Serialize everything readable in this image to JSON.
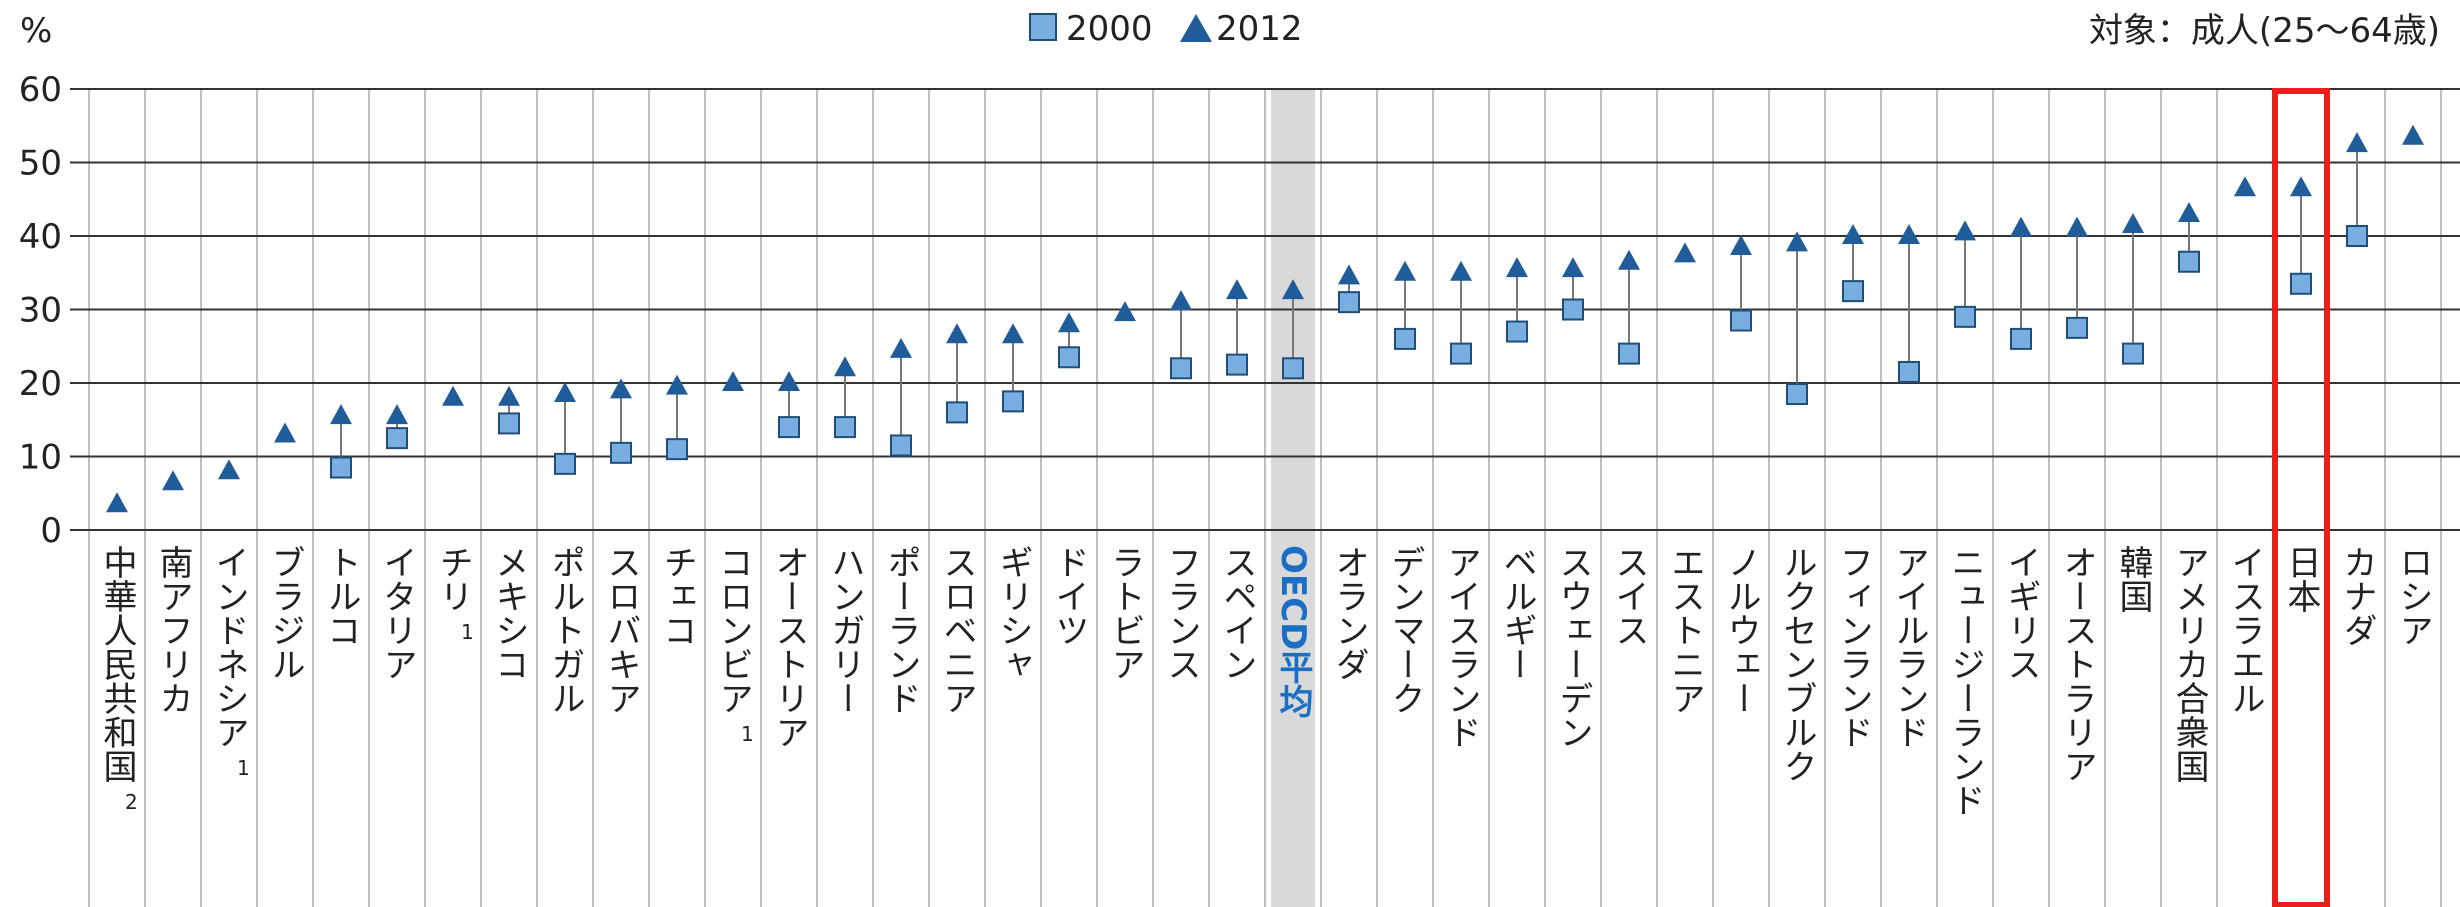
{
  "chart_data": {
    "type": "dot",
    "ylabel": "%",
    "annotation": "対象：成人(25～64歳)",
    "categories": [
      "中華人民共和国",
      "南アフリカ",
      "インドネシア",
      "ブラジル",
      "トルコ",
      "イタリア",
      "チリ",
      "メキシコ",
      "ポルトガル",
      "スロバキア",
      "チェコ",
      "コロンビア",
      "オーストリア",
      "ハンガリー",
      "ポーランド",
      "スロベニア",
      "ギリシャ",
      "ドイツ",
      "ラトビア",
      "フランス",
      "スペイン",
      "OECD平均",
      "オランダ",
      "デンマーク",
      "アイスランド",
      "ベルギー",
      "スウェーデン",
      "スイス",
      "エストニア",
      "ノルウェー",
      "ルクセンブルク",
      "フィンランド",
      "アイルランド",
      "ニュージーランド",
      "イギリス",
      "オーストラリア",
      "韓国",
      "アメリカ合衆国",
      "イスラエル",
      "日本",
      "カナダ",
      "ロシア"
    ],
    "category_notes": [
      "2",
      null,
      "1",
      null,
      null,
      null,
      "1",
      null,
      null,
      null,
      null,
      "1",
      null,
      null,
      null,
      null,
      null,
      null,
      null,
      null,
      null,
      null,
      null,
      null,
      null,
      null,
      null,
      null,
      null,
      null,
      null,
      null,
      null,
      null,
      null,
      null,
      null,
      null,
      null,
      null,
      null,
      null
    ],
    "series": [
      {
        "name": "2000",
        "color": "#79afe0",
        "marker": "square",
        "values": [
          null,
          null,
          null,
          null,
          8.5,
          12.5,
          null,
          14.5,
          9,
          10.5,
          11,
          null,
          14,
          14,
          11.5,
          16,
          17.5,
          23.5,
          null,
          22,
          22.5,
          22,
          31,
          26,
          24,
          27,
          30,
          24,
          null,
          28.5,
          18.5,
          32.5,
          21.5,
          29,
          26,
          27.5,
          24,
          36.5,
          null,
          33.5,
          40,
          null
        ]
      },
      {
        "name": "2012",
        "color": "#1f5c99",
        "marker": "triangle",
        "values": [
          3.5,
          6.5,
          8,
          13,
          15.5,
          15.5,
          18,
          18,
          18.5,
          19,
          19.5,
          20,
          20,
          22,
          24.5,
          26.5,
          26.5,
          28,
          29.5,
          31,
          32.5,
          32.5,
          34.5,
          35,
          35,
          35.5,
          35.5,
          36.5,
          37.5,
          38.5,
          39,
          40,
          40,
          40.5,
          41,
          41,
          41.5,
          43,
          46.5,
          46.5,
          52.5,
          53.5
        ]
      }
    ],
    "ylim": [
      0,
      60
    ],
    "yticks": [
      0,
      10,
      20,
      30,
      40,
      50,
      60
    ],
    "grid": true,
    "highlight": [
      "OECD平均"
    ],
    "highlight_color": "#1a6fc4",
    "boxed": [
      "日本"
    ],
    "box_color": "#e8201c"
  }
}
